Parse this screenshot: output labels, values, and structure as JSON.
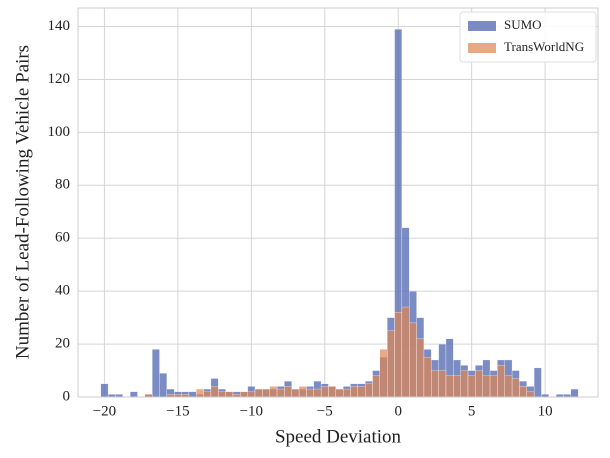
{
  "chart_data": {
    "type": "histogram",
    "xlabel": "Speed Deviation",
    "ylabel": "Number of Lead-Following Vehicle Pairs",
    "bins": [
      -20.25,
      -19.75,
      -19.25,
      -18.75,
      -18.25,
      -17.75,
      -17.25,
      -16.75,
      -16.25,
      -15.75,
      -15.25,
      -14.75,
      -14.25,
      -13.75,
      -13.25,
      -12.75,
      -12.25,
      -11.75,
      -11.25,
      -10.75,
      -10.25,
      -9.75,
      -9.25,
      -8.75,
      -8.25,
      -7.75,
      -7.25,
      -6.75,
      -6.25,
      -5.75,
      -5.25,
      -4.75,
      -4.25,
      -3.75,
      -3.25,
      -2.75,
      -2.25,
      -1.75,
      -1.25,
      -0.75,
      -0.25,
      0.25,
      0.75,
      1.25,
      1.75,
      2.25,
      2.75,
      3.25,
      3.75,
      4.25,
      4.75,
      5.25,
      5.75,
      6.25,
      6.75,
      7.25,
      7.75,
      8.25,
      8.75,
      9.25,
      9.75,
      10.25,
      10.75,
      11.25,
      11.75,
      12.25
    ],
    "series": [
      {
        "name": "SUMO",
        "color": "#5a6fb5",
        "values": [
          5,
          1,
          1,
          0,
          2,
          0,
          1,
          18,
          9,
          3,
          2,
          2,
          2,
          1,
          3,
          7,
          3,
          2,
          2,
          2,
          4,
          3,
          3,
          3,
          4,
          6,
          3,
          3,
          4,
          6,
          5,
          4,
          3,
          4,
          5,
          5,
          6,
          10,
          15,
          30,
          139,
          64,
          40,
          30,
          18,
          14,
          20,
          22,
          14,
          12,
          10,
          12,
          14,
          10,
          14,
          14,
          10,
          6,
          4,
          11,
          1,
          0,
          1,
          1,
          3
        ]
      },
      {
        "name": "TransWorldNG",
        "color": "#dd8452",
        "values": [
          0,
          0,
          0,
          0,
          0,
          0,
          1,
          0,
          0,
          1,
          1,
          1,
          0,
          3,
          2,
          4,
          2,
          2,
          1,
          2,
          2,
          3,
          3,
          4,
          3,
          4,
          3,
          4,
          3,
          3,
          4,
          4,
          3,
          3,
          4,
          4,
          5,
          8,
          18,
          25,
          32,
          34,
          28,
          22,
          15,
          10,
          10,
          8,
          8,
          10,
          8,
          10,
          8,
          8,
          12,
          8,
          7,
          4,
          2,
          0,
          0,
          0,
          0,
          0,
          0
        ]
      }
    ],
    "xlim": [
      -21.8,
      13.6
    ],
    "ylim": [
      0,
      147
    ],
    "xticks": [
      {
        "value": -20,
        "label": "−20"
      },
      {
        "value": -15,
        "label": "−15"
      },
      {
        "value": -10,
        "label": "−10"
      },
      {
        "value": -5,
        "label": "−5"
      },
      0,
      5,
      10
    ],
    "yticks": [
      0,
      20,
      40,
      60,
      80,
      100,
      120,
      140
    ],
    "grid": true,
    "legend": "upper right"
  }
}
